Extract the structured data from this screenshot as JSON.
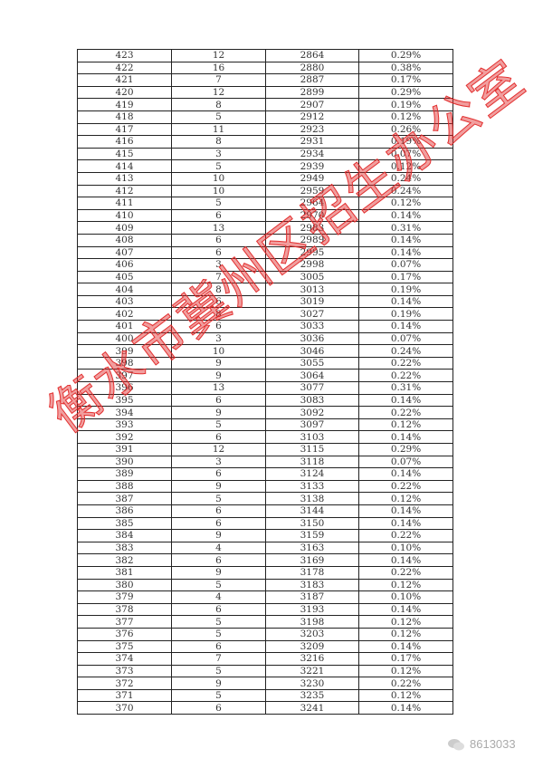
{
  "table": {
    "rows": [
      [
        "423",
        "12",
        "2864",
        "0.29%"
      ],
      [
        "422",
        "16",
        "2880",
        "0.38%"
      ],
      [
        "421",
        "7",
        "2887",
        "0.17%"
      ],
      [
        "420",
        "12",
        "2899",
        "0.29%"
      ],
      [
        "419",
        "8",
        "2907",
        "0.19%"
      ],
      [
        "418",
        "5",
        "2912",
        "0.12%"
      ],
      [
        "417",
        "11",
        "2923",
        "0.26%"
      ],
      [
        "416",
        "8",
        "2931",
        "0.19%"
      ],
      [
        "415",
        "3",
        "2934",
        "0.07%"
      ],
      [
        "414",
        "5",
        "2939",
        "0.12%"
      ],
      [
        "413",
        "10",
        "2949",
        "0.24%"
      ],
      [
        "412",
        "10",
        "2959",
        "0.24%"
      ],
      [
        "411",
        "5",
        "2964",
        "0.12%"
      ],
      [
        "410",
        "6",
        "2970",
        "0.14%"
      ],
      [
        "409",
        "13",
        "2983",
        "0.31%"
      ],
      [
        "408",
        "6",
        "2989",
        "0.14%"
      ],
      [
        "407",
        "6",
        "2995",
        "0.14%"
      ],
      [
        "406",
        "3",
        "2998",
        "0.07%"
      ],
      [
        "405",
        "7",
        "3005",
        "0.17%"
      ],
      [
        "404",
        "8",
        "3013",
        "0.19%"
      ],
      [
        "403",
        "6",
        "3019",
        "0.14%"
      ],
      [
        "402",
        "8",
        "3027",
        "0.19%"
      ],
      [
        "401",
        "6",
        "3033",
        "0.14%"
      ],
      [
        "400",
        "3",
        "3036",
        "0.07%"
      ],
      [
        "399",
        "10",
        "3046",
        "0.24%"
      ],
      [
        "398",
        "9",
        "3055",
        "0.22%"
      ],
      [
        "397",
        "9",
        "3064",
        "0.22%"
      ],
      [
        "396",
        "13",
        "3077",
        "0.31%"
      ],
      [
        "395",
        "6",
        "3083",
        "0.14%"
      ],
      [
        "394",
        "9",
        "3092",
        "0.22%"
      ],
      [
        "393",
        "5",
        "3097",
        "0.12%"
      ],
      [
        "392",
        "6",
        "3103",
        "0.14%"
      ],
      [
        "391",
        "12",
        "3115",
        "0.29%"
      ],
      [
        "390",
        "3",
        "3118",
        "0.07%"
      ],
      [
        "389",
        "6",
        "3124",
        "0.14%"
      ],
      [
        "388",
        "9",
        "3133",
        "0.22%"
      ],
      [
        "387",
        "5",
        "3138",
        "0.12%"
      ],
      [
        "386",
        "6",
        "3144",
        "0.14%"
      ],
      [
        "385",
        "6",
        "3150",
        "0.14%"
      ],
      [
        "384",
        "9",
        "3159",
        "0.22%"
      ],
      [
        "383",
        "4",
        "3163",
        "0.10%"
      ],
      [
        "382",
        "6",
        "3169",
        "0.14%"
      ],
      [
        "381",
        "9",
        "3178",
        "0.22%"
      ],
      [
        "380",
        "5",
        "3183",
        "0.12%"
      ],
      [
        "379",
        "4",
        "3187",
        "0.10%"
      ],
      [
        "378",
        "6",
        "3193",
        "0.14%"
      ],
      [
        "377",
        "5",
        "3198",
        "0.12%"
      ],
      [
        "376",
        "5",
        "3203",
        "0.12%"
      ],
      [
        "375",
        "6",
        "3209",
        "0.14%"
      ],
      [
        "374",
        "7",
        "3216",
        "0.17%"
      ],
      [
        "373",
        "5",
        "3221",
        "0.12%"
      ],
      [
        "372",
        "9",
        "3230",
        "0.22%"
      ],
      [
        "371",
        "5",
        "3235",
        "0.12%"
      ],
      [
        "370",
        "6",
        "3241",
        "0.14%"
      ]
    ]
  },
  "watermark": {
    "text": "衡水市冀州区招生办公室",
    "color": "#e12828"
  },
  "footer": {
    "account": "8613033",
    "icon": "wechat-icon"
  }
}
